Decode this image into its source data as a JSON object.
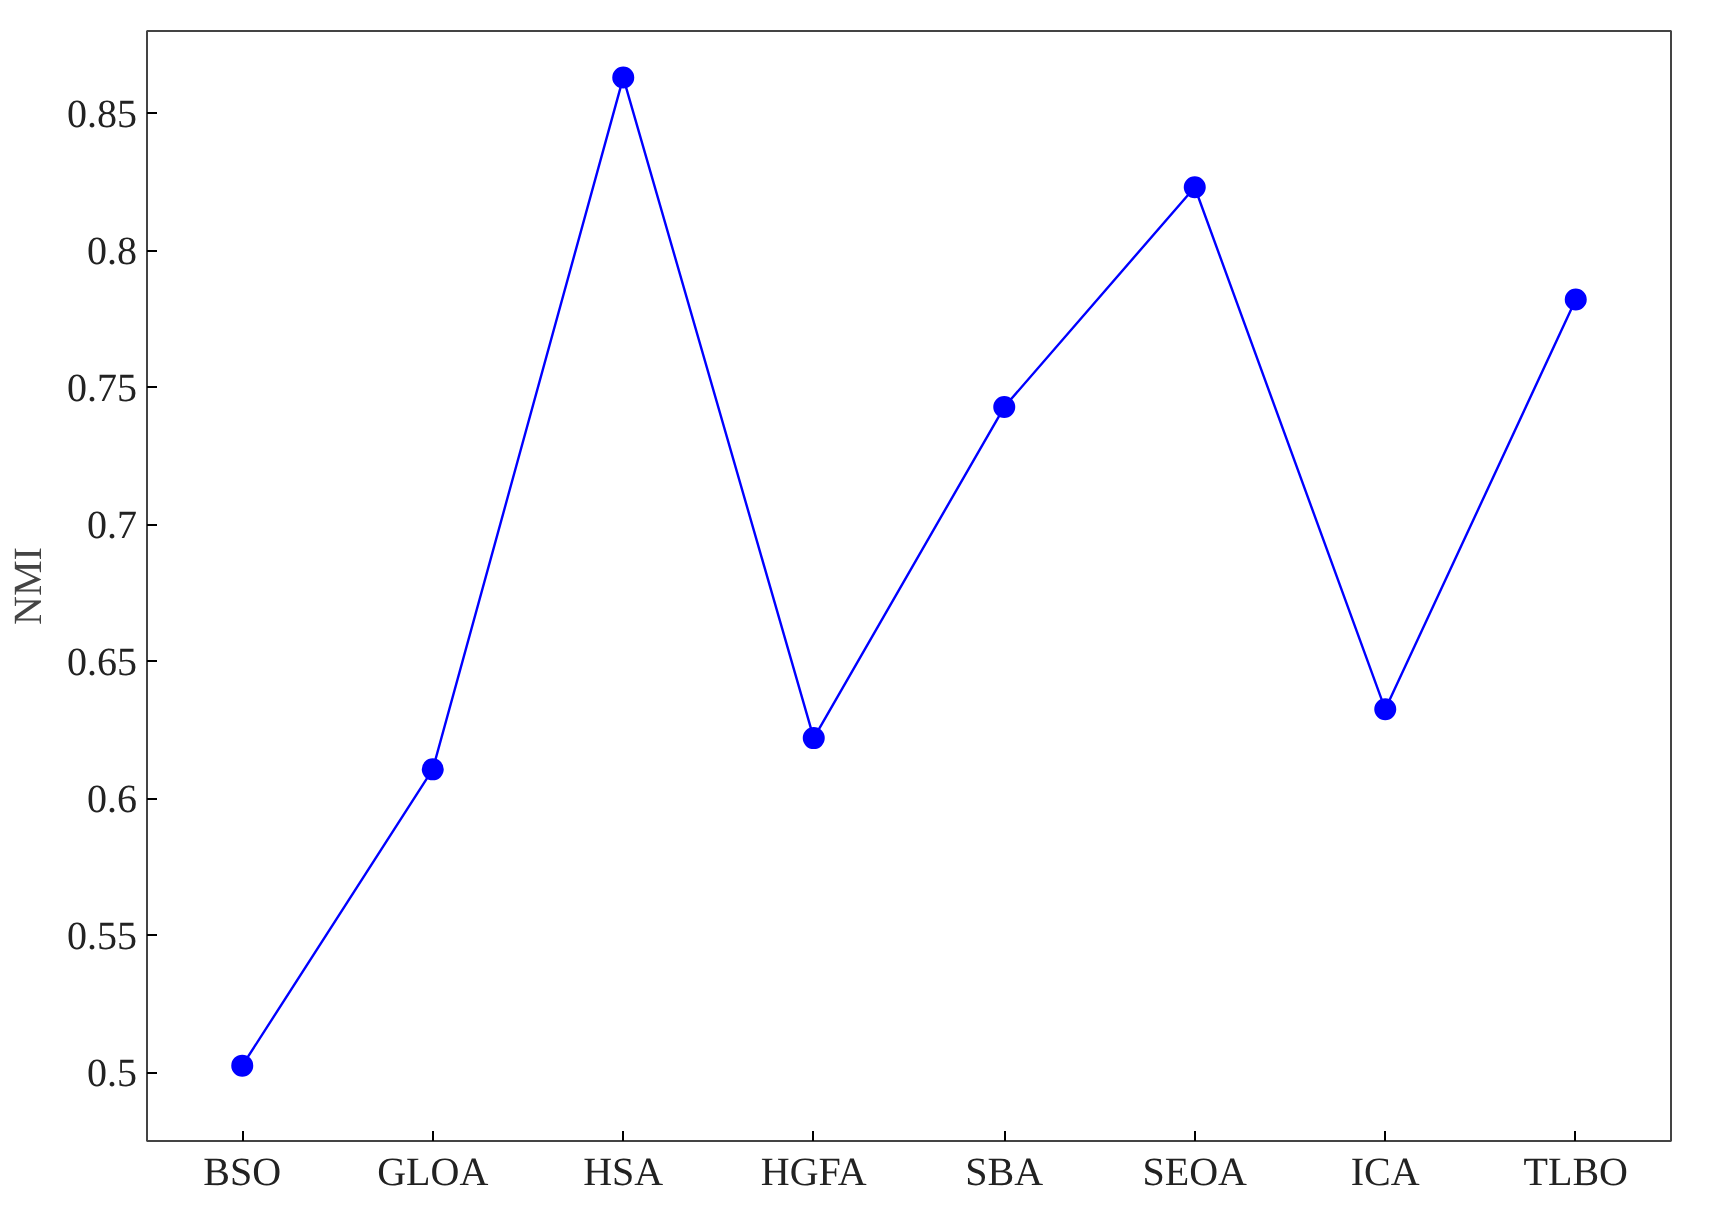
{
  "chart_data": {
    "type": "line",
    "ylabel": "NMI",
    "categories": [
      "BSO",
      "GLOA",
      "HSA",
      "HGFA",
      "SBA",
      "SEOA",
      "ICA",
      "TLBO"
    ],
    "series": [
      {
        "color": "#0000ff",
        "values": [
          0.5025,
          0.6106,
          0.863,
          0.622,
          0.7428,
          0.823,
          0.6325,
          0.782
        ]
      }
    ],
    "ylim": [
      0.475,
      0.88
    ],
    "yticks": [
      0.5,
      0.55,
      0.6,
      0.65,
      0.7,
      0.75,
      0.8,
      0.85
    ],
    "marker": "circle",
    "line_style": "solid",
    "grid": false
  }
}
